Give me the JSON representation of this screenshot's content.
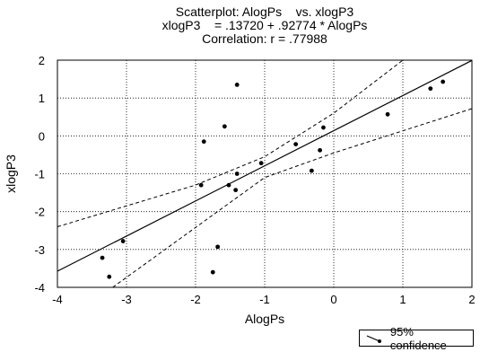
{
  "chart_data": {
    "type": "scatter",
    "title": "Scatterplot: AlogPs    vs. xlogP3",
    "subtitle": "xlogP3    = .13720 + .92774 * AlogPs",
    "subtitle2": "Correlation: r = .77988",
    "xlabel": "AlogPs",
    "ylabel": "xlogP3",
    "xlim": [
      -4,
      2
    ],
    "ylim": [
      -4,
      2
    ],
    "xticks": [
      "-4",
      "-3",
      "-2",
      "-1",
      "0",
      "1",
      "2"
    ],
    "yticks": [
      "2",
      "1",
      "0",
      "-1",
      "-2",
      "-3",
      "-4"
    ],
    "grid": true,
    "regression": {
      "intercept": 0.1372,
      "slope": 0.92774
    },
    "confidence_band": {
      "lower": [
        [
          -3.2,
          -4.0
        ],
        [
          -1.0,
          -1.1
        ],
        [
          0.0,
          -0.45
        ],
        [
          2.0,
          0.72
        ]
      ],
      "upper": [
        [
          -4.0,
          -2.4
        ],
        [
          -2.0,
          -1.3
        ],
        [
          -1.0,
          -0.55
        ],
        [
          0.0,
          0.6
        ],
        [
          1.0,
          2.0
        ]
      ]
    },
    "points": [
      {
        "x": -3.35,
        "y": -3.22
      },
      {
        "x": -3.25,
        "y": -3.72
      },
      {
        "x": -3.05,
        "y": -2.78
      },
      {
        "x": -1.92,
        "y": -1.3
      },
      {
        "x": -1.88,
        "y": -0.15
      },
      {
        "x": -1.75,
        "y": -3.6
      },
      {
        "x": -1.68,
        "y": -2.93
      },
      {
        "x": -1.58,
        "y": 0.25
      },
      {
        "x": -1.52,
        "y": -1.3
      },
      {
        "x": -1.42,
        "y": -1.43
      },
      {
        "x": -1.4,
        "y": -1.0
      },
      {
        "x": -1.4,
        "y": 1.35
      },
      {
        "x": -1.05,
        "y": -0.72
      },
      {
        "x": -0.55,
        "y": -0.22
      },
      {
        "x": -0.32,
        "y": -0.92
      },
      {
        "x": -0.2,
        "y": -0.38
      },
      {
        "x": -0.15,
        "y": 0.22
      },
      {
        "x": 0.78,
        "y": 0.57
      },
      {
        "x": 1.4,
        "y": 1.25
      },
      {
        "x": 1.58,
        "y": 1.43
      }
    ],
    "legend": {
      "label": "95% confidence",
      "position": "bottom-right"
    }
  }
}
